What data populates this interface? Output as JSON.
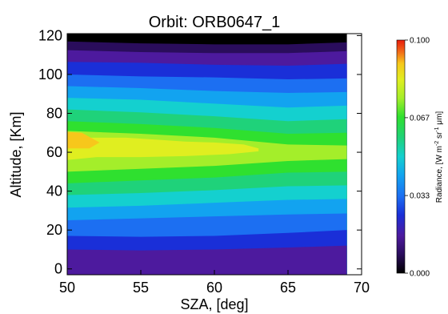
{
  "chart_data": {
    "type": "heatmap",
    "subtype": "filled-contour",
    "title": "Orbit: ORB0647_1",
    "xlabel": "SZA, [deg]",
    "ylabel": "Altitude, [Km]",
    "xlim": [
      50,
      70
    ],
    "ylim": [
      -3,
      121
    ],
    "xticks": [
      "50",
      "55",
      "60",
      "65",
      "70"
    ],
    "yticks": [
      "0",
      "20",
      "40",
      "60",
      "80",
      "100",
      "120"
    ],
    "grid": false,
    "data_extent_sza": [
      50,
      69
    ],
    "colorbar": {
      "label": "Radiance, [W m⁻² sr⁻¹ μm]",
      "label_main": "Radiance, [W m",
      "label_sup1": "-2",
      "label_mid": " sr",
      "label_sup2": "-1",
      "label_end": " μm]",
      "range": [
        0.0,
        0.1
      ],
      "tick_labels": [
        "0.000",
        "0.033",
        "0.067",
        "0.100"
      ],
      "tick_values": [
        0.0,
        0.0333,
        0.0667,
        0.1
      ],
      "colormap": "rainbow"
    },
    "levels": [
      0.0,
      0.00833,
      0.01667,
      0.025,
      0.0333,
      0.04167,
      0.05,
      0.0583,
      0.0667,
      0.075,
      0.0833,
      0.0917,
      0.1
    ],
    "level_colors": [
      "#000000",
      "#2a0d5c",
      "#4d1a9e",
      "#1a2fd8",
      "#1c6ff2",
      "#12a3f0",
      "#14d0cf",
      "#1fd27a",
      "#2fe02f",
      "#a4ee2a",
      "#e0ee20",
      "#f7c71b",
      "#f26a18",
      "#e81c0c"
    ],
    "contour_boundaries": [
      {
        "value": 0.00833,
        "sza": [
          50,
          55,
          60,
          65,
          69
        ],
        "altitude": [
          117,
          116,
          115.5,
          115.5,
          116.5
        ]
      },
      {
        "value": 0.01667,
        "sza": [
          50,
          55,
          60,
          65,
          69
        ],
        "altitude": [
          112.5,
          111.5,
          111,
          111,
          112
        ]
      },
      {
        "value": 0.025,
        "sza": [
          50,
          55,
          60,
          65,
          69
        ],
        "altitude": [
          106.5,
          106,
          105,
          104.5,
          105.5
        ]
      },
      {
        "value": 0.0333,
        "sza": [
          50,
          55,
          60,
          65,
          69
        ],
        "altitude": [
          100,
          99,
          98.5,
          97.5,
          98
        ]
      },
      {
        "value": 0.04167,
        "sza": [
          50,
          55,
          60,
          65,
          69
        ],
        "altitude": [
          94,
          93,
          91.5,
          90.5,
          91
        ]
      },
      {
        "value": 0.05,
        "sza": [
          50,
          55,
          60,
          65,
          69
        ],
        "altitude": [
          88,
          87,
          85,
          83,
          84
        ]
      },
      {
        "value": 0.0583,
        "sza": [
          50,
          55,
          60,
          65,
          69
        ],
        "altitude": [
          82,
          80.5,
          78.5,
          76,
          77
        ]
      },
      {
        "value": 0.0667,
        "sza": [
          50,
          55,
          60,
          65,
          69
        ],
        "altitude": [
          76,
          74.5,
          72.5,
          69.5,
          70
        ]
      },
      {
        "value": 0.075,
        "sza": [
          50,
          55,
          60,
          65,
          69
        ],
        "altitude": [
          71,
          69.5,
          67.5,
          64,
          63.5
        ]
      },
      {
        "value": 0.075,
        "sza": [
          50,
          55,
          60,
          65,
          69
        ],
        "altitude": [
          50,
          51.5,
          53,
          55.5,
          56.5
        ]
      },
      {
        "value": 0.0667,
        "sza": [
          50,
          55,
          60,
          65,
          69
        ],
        "altitude": [
          44,
          45.5,
          47,
          49.5,
          50
        ]
      },
      {
        "value": 0.0583,
        "sza": [
          50,
          55,
          60,
          65,
          69
        ],
        "altitude": [
          38,
          39,
          40.5,
          42.5,
          43
        ]
      },
      {
        "value": 0.05,
        "sza": [
          50,
          55,
          60,
          65,
          69
        ],
        "altitude": [
          31.5,
          32.5,
          34,
          35.5,
          36
        ]
      },
      {
        "value": 0.04167,
        "sza": [
          50,
          55,
          60,
          65,
          69
        ],
        "altitude": [
          25,
          26,
          27,
          28,
          28.5
        ]
      },
      {
        "value": 0.0333,
        "sza": [
          50,
          55,
          60,
          65,
          69
        ],
        "altitude": [
          17,
          16.5,
          17,
          18.5,
          20
        ]
      },
      {
        "value": 0.025,
        "sza": [
          50,
          55,
          60,
          65,
          69
        ],
        "altitude": [
          10,
          9.5,
          10,
          11,
          12
        ]
      }
    ],
    "core_regions": [
      {
        "value": 0.0833,
        "sza": [
          50,
          51.5,
          54,
          56,
          58,
          60,
          62,
          63,
          63,
          61,
          58,
          55,
          52,
          50
        ],
        "altitude": [
          66,
          67.5,
          67.5,
          66.5,
          65.5,
          65,
          64,
          62,
          60.5,
          59,
          58,
          57.5,
          57.5,
          56
        ]
      },
      {
        "value": 0.0917,
        "sza": [
          50,
          51,
          52.2,
          51.5,
          50
        ],
        "altitude": [
          70.5,
          70,
          65,
          62,
          62
        ]
      }
    ]
  }
}
